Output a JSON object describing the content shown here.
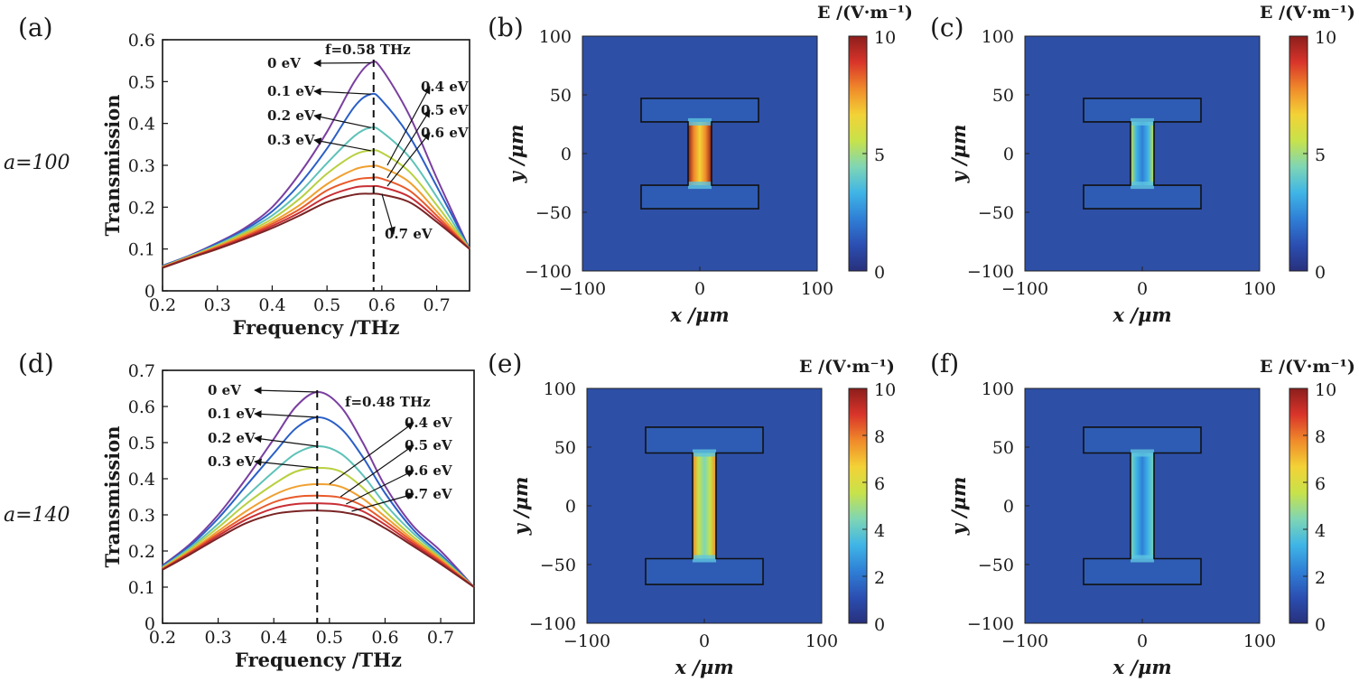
{
  "colors": {
    "field_low": "#2d4fa6",
    "colormap": [
      "#28307c",
      "#2b4fb2",
      "#2f7fd6",
      "#3fb5e6",
      "#7fd6b4",
      "#c8e24a",
      "#f3d236",
      "#f08a2a",
      "#d9342a",
      "#8c1e1c"
    ],
    "line_colors": [
      "#7a3fa0",
      "#2a5fc8",
      "#5ec2b8",
      "#b8d040",
      "#f0a030",
      "#e85a2a",
      "#c82e34",
      "#7a2424"
    ]
  },
  "rows": [
    {
      "label": "a=100"
    },
    {
      "label": "a=140"
    }
  ],
  "chart_data": [
    {
      "panel": "(a)",
      "type": "line",
      "xlabel": "Frequency /THz",
      "ylabel": "Transmission",
      "xlim": [
        0.2,
        0.76
      ],
      "ylim": [
        0,
        0.6
      ],
      "xticks": [
        "0.2",
        "0.3",
        "0.4",
        "0.5",
        "0.6",
        "0.7"
      ],
      "yticks": [
        "0",
        "0.1",
        "0.2",
        "0.3",
        "0.4",
        "0.5",
        "0.6"
      ],
      "x": [
        0.2,
        0.25,
        0.3,
        0.35,
        0.4,
        0.45,
        0.5,
        0.55,
        0.58,
        0.6,
        0.65,
        0.7,
        0.76
      ],
      "series": [
        {
          "name": "0 eV",
          "values": [
            0.06,
            0.085,
            0.115,
            0.15,
            0.2,
            0.28,
            0.38,
            0.5,
            0.545,
            0.53,
            0.42,
            0.27,
            0.1
          ]
        },
        {
          "name": "0.1 eV",
          "values": [
            0.06,
            0.084,
            0.113,
            0.146,
            0.19,
            0.255,
            0.34,
            0.44,
            0.47,
            0.455,
            0.37,
            0.25,
            0.1
          ]
        },
        {
          "name": "0.2 eV",
          "values": [
            0.058,
            0.083,
            0.11,
            0.142,
            0.18,
            0.235,
            0.305,
            0.37,
            0.39,
            0.38,
            0.32,
            0.225,
            0.1
          ]
        },
        {
          "name": "0.3 eV",
          "values": [
            0.058,
            0.082,
            0.108,
            0.138,
            0.172,
            0.22,
            0.28,
            0.325,
            0.335,
            0.33,
            0.285,
            0.205,
            0.1
          ]
        },
        {
          "name": "0.4 eV",
          "values": [
            0.057,
            0.081,
            0.106,
            0.134,
            0.165,
            0.205,
            0.255,
            0.29,
            0.298,
            0.295,
            0.26,
            0.19,
            0.1
          ]
        },
        {
          "name": "0.5 eV",
          "values": [
            0.056,
            0.08,
            0.104,
            0.13,
            0.16,
            0.195,
            0.24,
            0.265,
            0.27,
            0.268,
            0.24,
            0.18,
            0.1
          ]
        },
        {
          "name": "0.6 eV",
          "values": [
            0.056,
            0.079,
            0.102,
            0.127,
            0.155,
            0.187,
            0.225,
            0.247,
            0.25,
            0.248,
            0.225,
            0.172,
            0.1
          ]
        },
        {
          "name": "0.7 eV",
          "values": [
            0.055,
            0.078,
            0.1,
            0.124,
            0.15,
            0.18,
            0.212,
            0.23,
            0.232,
            0.23,
            0.212,
            0.165,
            0.1
          ]
        }
      ],
      "annotations": {
        "vline_x": 0.585,
        "vline_label": "f=0.58 THz"
      }
    },
    {
      "panel": "(d)",
      "type": "line",
      "xlabel": "Frequency /THz",
      "ylabel": "Transmission",
      "xlim": [
        0.2,
        0.76
      ],
      "ylim": [
        0,
        0.7
      ],
      "xticks": [
        "0.2",
        "0.3",
        "0.4",
        "0.5",
        "0.6",
        "0.7"
      ],
      "yticks": [
        "0",
        "0.1",
        "0.2",
        "0.3",
        "0.4",
        "0.5",
        "0.6",
        "0.7"
      ],
      "x": [
        0.2,
        0.25,
        0.3,
        0.35,
        0.4,
        0.44,
        0.48,
        0.52,
        0.56,
        0.6,
        0.65,
        0.7,
        0.76
      ],
      "series": [
        {
          "name": "0 eV",
          "values": [
            0.16,
            0.22,
            0.3,
            0.4,
            0.51,
            0.6,
            0.64,
            0.6,
            0.5,
            0.38,
            0.27,
            0.2,
            0.1
          ]
        },
        {
          "name": "0.1 eV",
          "values": [
            0.158,
            0.215,
            0.29,
            0.38,
            0.47,
            0.54,
            0.57,
            0.54,
            0.46,
            0.36,
            0.26,
            0.19,
            0.1
          ]
        },
        {
          "name": "0.2 eV",
          "values": [
            0.155,
            0.21,
            0.275,
            0.35,
            0.42,
            0.47,
            0.49,
            0.47,
            0.41,
            0.33,
            0.25,
            0.185,
            0.1
          ]
        },
        {
          "name": "0.3 eV",
          "values": [
            0.153,
            0.205,
            0.265,
            0.33,
            0.385,
            0.42,
            0.43,
            0.42,
            0.375,
            0.31,
            0.24,
            0.18,
            0.1
          ]
        },
        {
          "name": "0.4 eV",
          "values": [
            0.152,
            0.2,
            0.255,
            0.31,
            0.355,
            0.378,
            0.385,
            0.378,
            0.345,
            0.295,
            0.232,
            0.176,
            0.1
          ]
        },
        {
          "name": "0.5 eV",
          "values": [
            0.15,
            0.197,
            0.248,
            0.297,
            0.335,
            0.35,
            0.353,
            0.348,
            0.325,
            0.283,
            0.226,
            0.172,
            0.1
          ]
        },
        {
          "name": "0.6 eV",
          "values": [
            0.149,
            0.194,
            0.242,
            0.287,
            0.318,
            0.33,
            0.332,
            0.328,
            0.31,
            0.273,
            0.22,
            0.168,
            0.1
          ]
        },
        {
          "name": "0.7 eV",
          "values": [
            0.148,
            0.191,
            0.236,
            0.277,
            0.302,
            0.31,
            0.312,
            0.308,
            0.295,
            0.263,
            0.214,
            0.164,
            0.1
          ]
        }
      ],
      "annotations": {
        "vline_x": 0.478,
        "vline_label": "f=0.48 THz"
      }
    },
    {
      "panel": "(b)",
      "type": "heatmap",
      "xlabel": "x /μm",
      "ylabel": "y /μm",
      "xlim": [
        -100,
        100
      ],
      "ylim": [
        -100,
        100
      ],
      "xticks": [
        "−100",
        "0",
        "100"
      ],
      "yticks": [
        "100",
        "50",
        "0",
        "−50",
        "−100"
      ],
      "colorbar_label": "E /(V·m⁻¹)",
      "colorbar_ticks": [
        "10",
        "5",
        "0"
      ],
      "crange": [
        0,
        10
      ],
      "gap_field_max": 10
    },
    {
      "panel": "(c)",
      "type": "heatmap",
      "xlabel": "x /μm",
      "ylabel": "y /μm",
      "xlim": [
        -100,
        100
      ],
      "ylim": [
        -100,
        100
      ],
      "xticks": [
        "−100",
        "0",
        "100"
      ],
      "yticks": [
        "100",
        "50",
        "0",
        "−50",
        "−100"
      ],
      "colorbar_label": "E /(V·m⁻¹)",
      "colorbar_ticks": [
        "10",
        "5",
        "0"
      ],
      "crange": [
        0,
        10
      ],
      "gap_field_max": 5
    },
    {
      "panel": "(e)",
      "type": "heatmap",
      "xlabel": "x /μm",
      "ylabel": "y /μm",
      "xlim": [
        -100,
        100
      ],
      "ylim": [
        -100,
        100
      ],
      "xticks": [
        "−100",
        "0",
        "100"
      ],
      "yticks": [
        "100",
        "50",
        "0",
        "−50",
        "−100"
      ],
      "colorbar_label": "E /(V·m⁻¹)",
      "colorbar_ticks": [
        "10",
        "8",
        "6",
        "4",
        "2",
        "0"
      ],
      "crange": [
        0,
        10
      ],
      "gap_field_max": 8
    },
    {
      "panel": "(f)",
      "type": "heatmap",
      "xlabel": "x /μm",
      "ylabel": "y /μm",
      "xlim": [
        -100,
        100
      ],
      "ylim": [
        -100,
        100
      ],
      "xticks": [
        "−100",
        "0",
        "100"
      ],
      "yticks": [
        "100",
        "50",
        "0",
        "−50",
        "−100"
      ],
      "colorbar_label": "E /(V·m⁻¹)",
      "colorbar_ticks": [
        "10",
        "8",
        "6",
        "4",
        "2",
        "0"
      ],
      "crange": [
        0,
        10
      ],
      "gap_field_max": 4
    }
  ]
}
